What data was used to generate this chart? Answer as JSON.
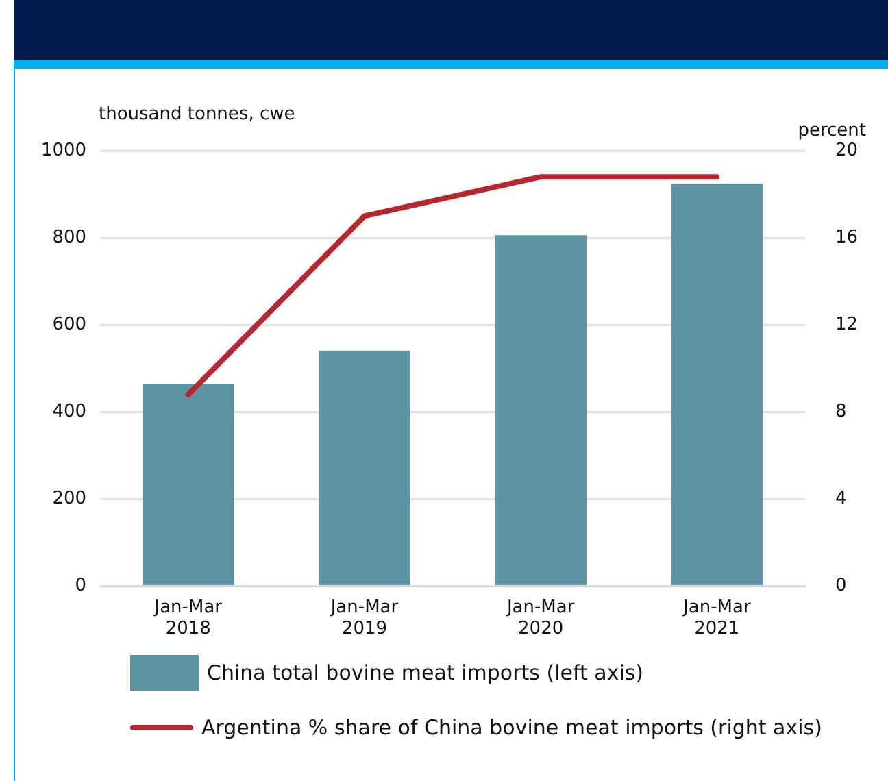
{
  "chart_data": {
    "type": "bar",
    "ylabel": "thousand tonnes, cwe",
    "y2label": "percent",
    "categories": [
      "Jan-Mar\n2018",
      "Jan-Mar\n2019",
      "Jan-Mar\n2020",
      "Jan-Mar\n2021"
    ],
    "series": [
      {
        "name": "China total bovine meat imports (left axis)",
        "color": "#5e93a3",
        "values": [
          465,
          541,
          806,
          924
        ]
      },
      {
        "type": "line",
        "name": "Argentina % share of China bovine meat imports (right axis)",
        "color": "#b5282d",
        "axis": "y2",
        "values": [
          8.8,
          17.0,
          18.8,
          18.8
        ]
      }
    ],
    "ylim": [
      0,
      1000
    ],
    "yticks": [
      0,
      200,
      400,
      600,
      800,
      1000
    ],
    "y2lim": [
      0,
      20
    ],
    "y2ticks": [
      0,
      4,
      8,
      12,
      16,
      20
    ],
    "grid": "y",
    "legend": "bottom",
    "marker": "none"
  }
}
